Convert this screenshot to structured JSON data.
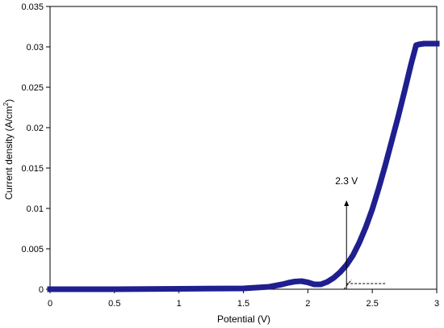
{
  "chart_data": {
    "type": "line",
    "title": "",
    "xlabel": "Potential (V)",
    "ylabel": "Current density (A/cm",
    "ylabel_sup": "2",
    "ylabel_tail": ")",
    "xlim": [
      0,
      3
    ],
    "ylim": [
      0,
      0.035
    ],
    "x_ticks": [
      "0",
      "0.5",
      "1",
      "1.5",
      "2",
      "2.5",
      "3"
    ],
    "y_ticks": [
      "0",
      "0.005",
      "0.01",
      "0.015",
      "0.02",
      "0.025",
      "0.03",
      "0.035"
    ],
    "grid": false,
    "legend": "none",
    "series_color": "#1f1f8f",
    "series": [
      {
        "x": [
          0,
          0.5,
          1.0,
          1.5,
          1.6,
          1.7,
          1.8,
          1.85,
          1.9,
          1.95,
          2.0,
          2.05,
          2.1,
          2.15,
          2.2,
          2.25,
          2.3,
          2.35,
          2.4,
          2.45,
          2.5,
          2.55,
          2.6,
          2.65,
          2.7,
          2.75,
          2.8,
          2.84,
          2.86,
          2.9,
          2.95,
          3.0
        ],
        "y": [
          0,
          0,
          5e-05,
          0.0001,
          0.0002,
          0.0003,
          0.0006,
          0.0008,
          0.00095,
          0.001,
          0.00085,
          0.0006,
          0.0006,
          0.0009,
          0.0014,
          0.0021,
          0.003,
          0.0042,
          0.0058,
          0.0077,
          0.0099,
          0.0125,
          0.0153,
          0.0183,
          0.0213,
          0.0245,
          0.0278,
          0.0302,
          0.0303,
          0.0304,
          0.0304,
          0.0304
        ]
      }
    ],
    "annotations": [
      {
        "text": "2.3 V",
        "arrow_x": 2.3,
        "arrow_from_y": 0,
        "arrow_to_y": 0.011
      },
      {
        "type": "dashed-baseline",
        "x_start": 2.3,
        "x_end": 2.6,
        "y": 0.0007
      },
      {
        "type": "dashed-tangent",
        "x_start": 2.28,
        "x_end": 2.34,
        "y_start": 0,
        "y_end": 0.0012
      }
    ]
  }
}
